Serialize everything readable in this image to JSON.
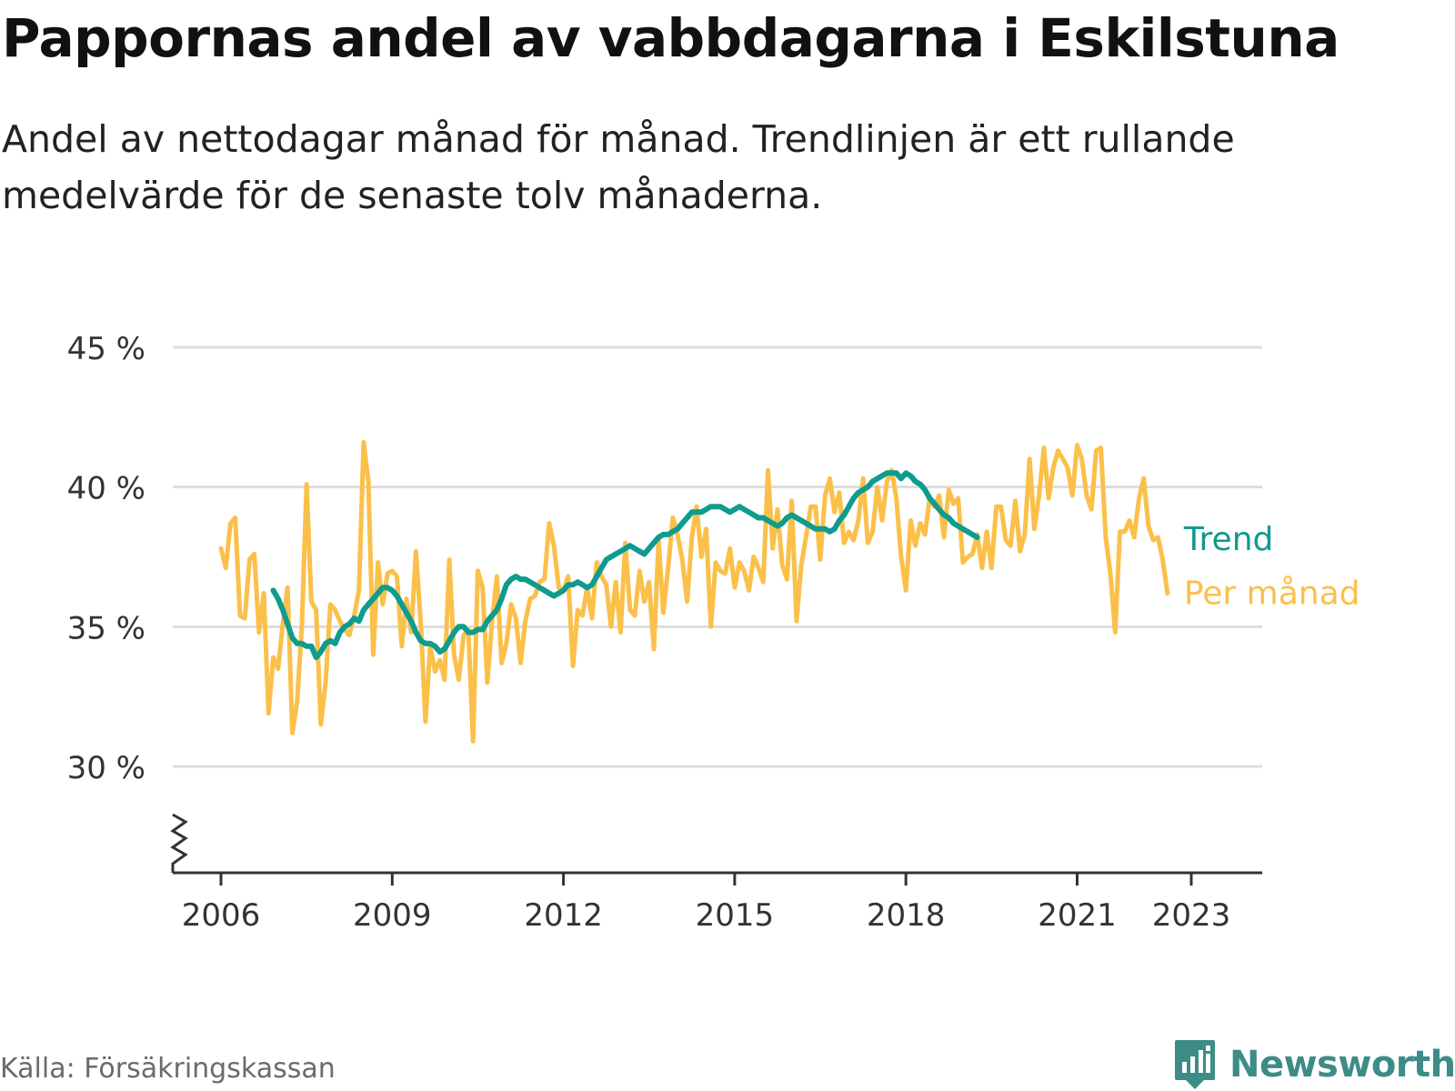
{
  "header": {
    "title": "Pappornas andel av vabbdagarna i Eskilstuna",
    "subtitle": "Andel av nettodagar månad för månad. Trendlinjen är ett rullande medelvärde för de senaste tolv månaderna."
  },
  "footer": {
    "source": "Källa: Försäkringskassan",
    "brand": "Newsworthy"
  },
  "colors": {
    "monthly": "#fbc04a",
    "trend": "#0f9b8e",
    "grid": "#dddddd",
    "axis": "#333333",
    "brand": "#3d8c87"
  },
  "chart_data": {
    "type": "line",
    "ylim": [
      30,
      45
    ],
    "xlim": [
      2005.75,
      2023.99
    ],
    "axis_break": true,
    "grid": true,
    "yticks": [
      {
        "value": 30,
        "label": "30 %"
      },
      {
        "value": 35,
        "label": "35 %"
      },
      {
        "value": 40,
        "label": "40 %"
      },
      {
        "value": 45,
        "label": "45 %"
      }
    ],
    "xticks": [
      {
        "value": 2006,
        "label": "2006"
      },
      {
        "value": 2009,
        "label": "2009"
      },
      {
        "value": 2012,
        "label": "2012"
      },
      {
        "value": 2015,
        "label": "2015"
      },
      {
        "value": 2018,
        "label": "2018"
      },
      {
        "value": 2021,
        "label": "2021"
      },
      {
        "value": 2023,
        "label": "2023"
      }
    ],
    "series": [
      {
        "name": "Per månad",
        "x_start": "2006-01",
        "y": [
          37.8,
          37.1,
          38.7,
          38.9,
          35.4,
          35.3,
          37.4,
          37.6,
          34.8,
          36.2,
          31.9,
          33.9,
          33.5,
          35.1,
          36.4,
          31.2,
          32.3,
          35.0,
          40.1,
          35.9,
          35.6,
          31.5,
          33.0,
          35.8,
          35.6,
          35.2,
          34.9,
          34.7,
          35.4,
          36.3,
          41.6,
          40.2,
          34.0,
          37.3,
          35.8,
          36.9,
          37.0,
          36.8,
          34.3,
          36.0,
          34.8,
          37.7,
          35.1,
          31.6,
          34.3,
          33.4,
          33.8,
          33.1,
          37.4,
          34.0,
          33.1,
          34.7,
          34.9,
          30.9,
          37.0,
          36.4,
          33.0,
          35.2,
          36.8,
          33.7,
          34.4,
          35.8,
          35.3,
          33.7,
          35.2,
          36.0,
          36.1,
          36.6,
          36.7,
          38.7,
          37.9,
          36.4,
          36.3,
          36.8,
          33.6,
          35.6,
          35.4,
          36.4,
          35.3,
          37.3,
          36.8,
          36.5,
          35.0,
          36.6,
          34.8,
          38.0,
          35.6,
          35.4,
          37.0,
          35.9,
          36.6,
          34.2,
          38.1,
          35.5,
          37.1,
          38.9,
          38.3,
          37.4,
          35.9,
          38.2,
          39.3,
          37.5,
          38.5,
          35.0,
          37.3,
          37.0,
          36.9,
          37.8,
          36.4,
          37.3,
          37.0,
          36.3,
          37.5,
          37.1,
          36.6,
          40.6,
          37.8,
          39.2,
          37.2,
          36.7,
          39.5,
          35.2,
          37.2,
          38.2,
          39.3,
          39.3,
          37.4,
          39.7,
          40.3,
          39.1,
          39.8,
          38.0,
          38.4,
          38.1,
          38.8,
          40.3,
          38.0,
          38.4,
          40.0,
          38.8,
          40.2,
          40.6,
          39.6,
          37.5,
          36.3,
          38.8,
          37.9,
          38.7,
          38.3,
          39.6,
          39.3,
          39.7,
          38.2,
          39.9,
          39.4,
          39.6,
          37.3,
          37.5,
          37.6,
          38.3,
          37.1,
          38.4,
          37.1,
          39.3,
          39.3,
          38.1,
          37.9,
          39.5,
          37.7,
          38.3,
          41.0,
          38.5,
          39.7,
          41.4,
          39.6,
          40.7,
          41.3,
          41.0,
          40.7,
          39.7,
          41.5,
          41.0,
          39.7,
          39.2,
          41.3,
          41.4,
          38.2,
          36.9,
          34.8,
          38.4,
          38.4,
          38.8,
          38.2,
          39.6,
          40.3,
          38.6,
          38.1,
          38.2,
          37.4,
          36.2
        ],
        "color": "#fbc04a"
      },
      {
        "name": "Trend",
        "x_start": "2006-12",
        "y": [
          36.3,
          36.0,
          35.6,
          35.1,
          34.6,
          34.4,
          34.4,
          34.3,
          34.3,
          33.9,
          34.1,
          34.4,
          34.5,
          34.4,
          34.8,
          35.0,
          35.1,
          35.3,
          35.2,
          35.6,
          35.8,
          36.0,
          36.2,
          36.4,
          36.4,
          36.3,
          36.1,
          35.8,
          35.5,
          35.2,
          34.8,
          34.5,
          34.4,
          34.4,
          34.3,
          34.1,
          34.2,
          34.5,
          34.8,
          35.0,
          35.0,
          34.8,
          34.8,
          34.9,
          34.9,
          35.2,
          35.4,
          35.6,
          36.0,
          36.5,
          36.7,
          36.8,
          36.7,
          36.7,
          36.6,
          36.5,
          36.4,
          36.3,
          36.2,
          36.1,
          36.2,
          36.3,
          36.5,
          36.5,
          36.6,
          36.5,
          36.4,
          36.5,
          36.8,
          37.1,
          37.4,
          37.5,
          37.6,
          37.7,
          37.8,
          37.9,
          37.8,
          37.7,
          37.6,
          37.8,
          38.0,
          38.2,
          38.3,
          38.3,
          38.4,
          38.5,
          38.7,
          38.9,
          39.1,
          39.1,
          39.1,
          39.2,
          39.3,
          39.3,
          39.3,
          39.2,
          39.1,
          39.2,
          39.3,
          39.2,
          39.1,
          39.0,
          38.9,
          38.9,
          38.8,
          38.7,
          38.6,
          38.7,
          38.9,
          39.0,
          38.9,
          38.8,
          38.7,
          38.6,
          38.5,
          38.5,
          38.5,
          38.4,
          38.5,
          38.8,
          39.0,
          39.3,
          39.6,
          39.8,
          39.9,
          40.0,
          40.2,
          40.3,
          40.4,
          40.5,
          40.5,
          40.5,
          40.3,
          40.5,
          40.4,
          40.2,
          40.1,
          39.9,
          39.6,
          39.4,
          39.2,
          39.0,
          38.9,
          38.7,
          38.6,
          38.5,
          38.4,
          38.3,
          38.2
        ],
        "color": "#0f9b8e"
      }
    ]
  }
}
